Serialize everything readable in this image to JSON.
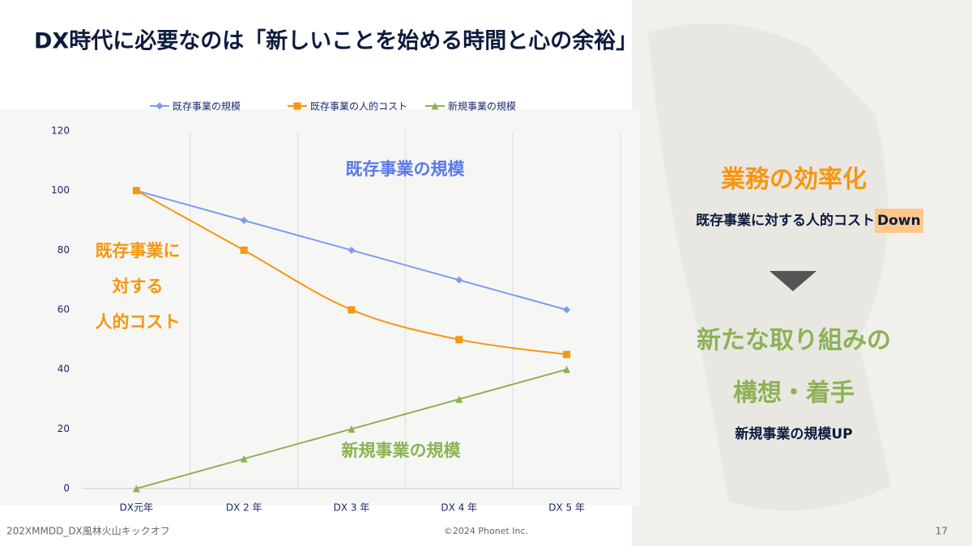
{
  "title": "DX時代に必要なのは「新しいことを始める時間と心の余裕」",
  "side": {
    "heading1": "業務の効率化",
    "text1": "既存事業に対する人的コスト",
    "text1_highlight": "Down",
    "heading2_line1": "新たな取り組みの",
    "heading2_line2": "構想・着手",
    "text2": "新規事業の規模UP"
  },
  "footer": {
    "left": "202XMMDD_DX風林火山キックオフ",
    "center": "©2024 Phonet Inc.",
    "page": "17"
  },
  "chart_data": {
    "type": "line",
    "categories": [
      "DX元年",
      "DX 2 年",
      "DX 3 年",
      "DX 4 年",
      "DX 5 年"
    ],
    "series": [
      {
        "name": "既存事業の規模",
        "color": "#7b9cf0",
        "marker": "diamond",
        "values": [
          100,
          90,
          80,
          70,
          60
        ]
      },
      {
        "name": "既存事業の人的コスト",
        "color": "#f7960f",
        "marker": "square",
        "smooth": true,
        "values": [
          100,
          80,
          60,
          50,
          45
        ]
      },
      {
        "name": "新規事業の規模",
        "color": "#8db255",
        "marker": "triangle",
        "values": [
          0,
          10,
          20,
          30,
          40
        ]
      }
    ],
    "ylim": [
      0,
      120
    ],
    "yticks": [
      0,
      20,
      40,
      60,
      80,
      100,
      120
    ],
    "annotations": [
      {
        "text": "既存事業の規模",
        "color": "#5a7ae8"
      },
      {
        "text": "既存事業に",
        "color": "#f7960f"
      },
      {
        "text": "対する",
        "color": "#f7960f"
      },
      {
        "text": "人的コスト",
        "color": "#f7960f"
      },
      {
        "text": "新規事業の規模",
        "color": "#8db255"
      }
    ]
  }
}
